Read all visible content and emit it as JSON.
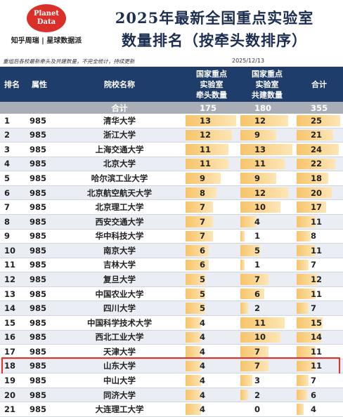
{
  "header": {
    "logo": "Planet Data",
    "brand": "知乎周瑞 | 星球数据派",
    "title_lines": [
      "2025年最新全国重点实验室",
      "数量排名（按牵头数排序）"
    ]
  },
  "note": "重组后各校最新牵头及共建数量，不完全统计，持续更新",
  "date": "2025/12/13",
  "table": {
    "columns": [
      [
        "排名"
      ],
      [
        "属性"
      ],
      [
        "院校名称"
      ],
      [
        "国家重点",
        "实验室",
        "牵头数量"
      ],
      [
        "国家重点",
        "实验室",
        "共建数量"
      ],
      [
        "合计"
      ]
    ],
    "total": {
      "label": "合计",
      "lead": 175,
      "co": 180,
      "total": 355
    },
    "rows": [
      {
        "rank": 1,
        "type": "985",
        "name": "清华大学",
        "lead": 13,
        "co": 12,
        "total": 25
      },
      {
        "rank": 2,
        "type": "985",
        "name": "浙江大学",
        "lead": 12,
        "co": 9,
        "total": 21
      },
      {
        "rank": 3,
        "type": "985",
        "name": "上海交通大学",
        "lead": 11,
        "co": 13,
        "total": 24
      },
      {
        "rank": 4,
        "type": "985",
        "name": "北京大学",
        "lead": 11,
        "co": 11,
        "total": 22
      },
      {
        "rank": 5,
        "type": "985",
        "name": "哈尔滨工业大学",
        "lead": 9,
        "co": 9,
        "total": 18
      },
      {
        "rank": 6,
        "type": "985",
        "name": "北京航空航天大学",
        "lead": 8,
        "co": 12,
        "total": 20
      },
      {
        "rank": 7,
        "type": "985",
        "name": "北京理工大学",
        "lead": 7,
        "co": 10,
        "total": 17
      },
      {
        "rank": 8,
        "type": "985",
        "name": "西安交通大学",
        "lead": 7,
        "co": 4,
        "total": 11
      },
      {
        "rank": 9,
        "type": "985",
        "name": "华中科技大学",
        "lead": 7,
        "co": 1,
        "total": 8
      },
      {
        "rank": 10,
        "type": "985",
        "name": "南京大学",
        "lead": 6,
        "co": 5,
        "total": 11
      },
      {
        "rank": 11,
        "type": "985",
        "name": "吉林大学",
        "lead": 6,
        "co": 1,
        "total": 7
      },
      {
        "rank": 12,
        "type": "985",
        "name": "复旦大学",
        "lead": 5,
        "co": 7,
        "total": 12
      },
      {
        "rank": 13,
        "type": "985",
        "name": "中国农业大学",
        "lead": 5,
        "co": 6,
        "total": 11
      },
      {
        "rank": 14,
        "type": "985",
        "name": "四川大学",
        "lead": 5,
        "co": 2,
        "total": 7
      },
      {
        "rank": 15,
        "type": "985",
        "name": "中国科学技术大学",
        "lead": 4,
        "co": 11,
        "total": 15
      },
      {
        "rank": 16,
        "type": "985",
        "name": "西北工业大学",
        "lead": 4,
        "co": 10,
        "total": 14
      },
      {
        "rank": 17,
        "type": "985",
        "name": "天津大学",
        "lead": 4,
        "co": 7,
        "total": 11
      },
      {
        "rank": 18,
        "type": "985",
        "name": "山东大学",
        "lead": 4,
        "co": 7,
        "total": 11,
        "highlight": true
      },
      {
        "rank": 19,
        "type": "985",
        "name": "中山大学",
        "lead": 4,
        "co": 3,
        "total": 7
      },
      {
        "rank": 20,
        "type": "985",
        "name": "同济大学",
        "lead": 4,
        "co": 2,
        "total": 6
      },
      {
        "rank": 21,
        "type": "985",
        "name": "大连理工大学",
        "lead": 4,
        "co": 0,
        "total": 4
      }
    ]
  }
}
